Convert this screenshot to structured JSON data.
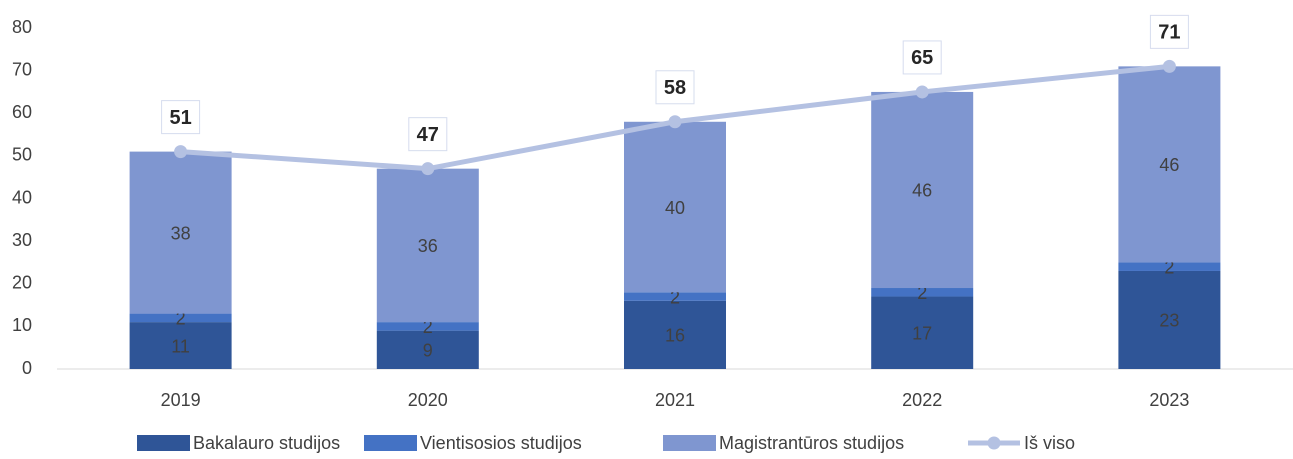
{
  "chart_data": {
    "type": "bar",
    "stacked": true,
    "categories": [
      "2019",
      "2020",
      "2021",
      "2022",
      "2023"
    ],
    "series": [
      {
        "name": "Bakalauro studijos",
        "color": "#2f5597",
        "values": [
          11,
          9,
          16,
          17,
          23
        ]
      },
      {
        "name": "Vientisosios studijos",
        "color": "#4472c4",
        "values": [
          2,
          2,
          2,
          2,
          2
        ]
      },
      {
        "name": "Magistrantūros studijos",
        "color": "#7f96d0",
        "values": [
          38,
          36,
          40,
          46,
          46
        ]
      },
      {
        "name": "Iš viso",
        "type": "line",
        "color": "#b4c1e2",
        "values": [
          51,
          47,
          58,
          65,
          71
        ]
      }
    ],
    "ylim": [
      0,
      80
    ],
    "yticks": [
      0,
      10,
      20,
      30,
      40,
      50,
      60,
      70,
      80
    ],
    "grid": false,
    "legend": "bottom"
  }
}
